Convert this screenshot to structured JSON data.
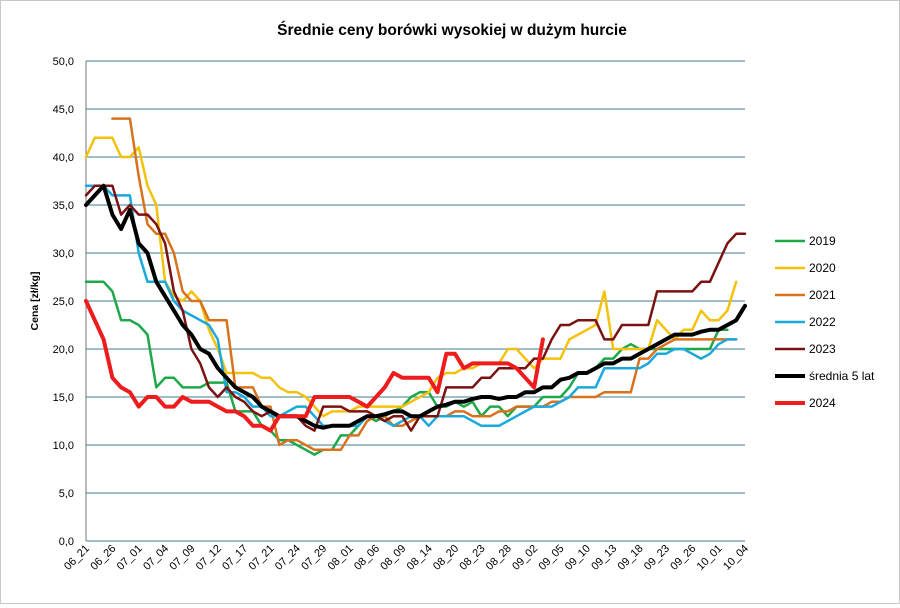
{
  "chart_data": {
    "type": "line",
    "title": "Średnie ceny borówki wysokiej w dużym hurcie",
    "ylabel": "Cena  [zł/kg]",
    "xlabel": "",
    "ylim": [
      0,
      50
    ],
    "grid": true,
    "legend_position": "right",
    "x_tick_labels": [
      "06_21",
      "06_26",
      "07_01",
      "07_04",
      "07_09",
      "07_12",
      "07_17",
      "07_21",
      "07_24",
      "07_29",
      "08_01",
      "08_06",
      "08_09",
      "08_14",
      "08_20",
      "08_23",
      "08_28",
      "09_02",
      "09_05",
      "09_10",
      "09_13",
      "09_18",
      "09_23",
      "09_26",
      "10_01",
      "10_04"
    ],
    "y_tick_labels": [
      "0,0",
      "5,0",
      "10,0",
      "15,0",
      "20,0",
      "25,0",
      "30,0",
      "35,0",
      "40,0",
      "45,0",
      "50,0"
    ],
    "series": [
      {
        "name": "2019",
        "color": "#1ea84a",
        "width": 2.5,
        "values": [
          27,
          27,
          27,
          26,
          23,
          23,
          22.5,
          21.5,
          16,
          17,
          17,
          16,
          16,
          16,
          16.5,
          16.5,
          16.5,
          13.5,
          13.5,
          13.5,
          12,
          11.5,
          10.5,
          10.5,
          10,
          9.5,
          9,
          9.5,
          9.5,
          11,
          11,
          12,
          13,
          12.5,
          13,
          13.5,
          14,
          15,
          15.5,
          15.5,
          14,
          14,
          14.5,
          14,
          14.5,
          13,
          14,
          14,
          13,
          14,
          14,
          14,
          15,
          15,
          15,
          16,
          17.5,
          17.5,
          18,
          19,
          19,
          20,
          20.5,
          20,
          20,
          20,
          20,
          20,
          20,
          20,
          20,
          20,
          22,
          22
        ]
      },
      {
        "name": "2020",
        "color": "#f4c20d",
        "width": 2.5,
        "values": [
          40,
          42,
          42,
          42,
          40,
          40,
          41,
          37,
          35,
          27,
          25.5,
          25,
          26,
          25,
          22,
          20,
          17.5,
          17.5,
          17.5,
          17.5,
          17,
          17,
          16,
          15.5,
          15.5,
          15,
          14,
          13,
          13.5,
          13.5,
          13.5,
          14,
          14,
          14,
          14,
          14,
          14,
          14.5,
          15,
          15.5,
          17,
          17.5,
          17.5,
          18,
          18,
          18.5,
          18.5,
          18.5,
          20,
          20,
          19,
          18,
          19,
          19,
          19,
          21,
          21.5,
          22,
          22.5,
          26,
          20,
          20,
          20,
          20,
          20,
          23,
          22,
          21,
          22,
          22,
          24,
          23,
          23,
          24,
          27
        ]
      },
      {
        "name": "2021",
        "color": "#d9721c",
        "width": 2.5,
        "values": [
          null,
          null,
          null,
          44,
          44,
          44,
          38,
          33,
          32,
          32,
          30,
          26,
          25,
          25,
          23,
          23,
          23,
          16,
          16,
          16,
          14,
          14,
          10,
          10.5,
          10.5,
          10,
          9.5,
          9.5,
          9.5,
          9.5,
          11,
          11,
          12.5,
          13,
          13,
          12,
          12,
          12.5,
          13,
          13,
          13,
          13,
          13.5,
          13.5,
          13,
          13,
          13,
          13.5,
          13.5,
          14,
          14,
          14,
          14,
          14.5,
          14.5,
          15,
          15,
          15,
          15,
          15.5,
          15.5,
          15.5,
          15.5,
          19,
          19,
          20,
          20.5,
          21,
          21,
          21,
          21,
          21,
          21,
          21,
          21
        ]
      },
      {
        "name": "2022",
        "color": "#19a9dc",
        "width": 2.5,
        "values": [
          37,
          37,
          37,
          36,
          36,
          36,
          30,
          27,
          27,
          27,
          25,
          24,
          23.5,
          23,
          22.5,
          21,
          15.5,
          15.5,
          15,
          14,
          14,
          13,
          13,
          13.5,
          14,
          14,
          13,
          12,
          12,
          12,
          12,
          12,
          13,
          13,
          12.5,
          12,
          12.5,
          13,
          13,
          12,
          13,
          13,
          13,
          13,
          12.5,
          12,
          12,
          12,
          12.5,
          13,
          13.5,
          14,
          14,
          14,
          14.5,
          15,
          16,
          16,
          16,
          18,
          18,
          18,
          18,
          18,
          18.5,
          19.5,
          19.5,
          20,
          20,
          19.5,
          19,
          19.5,
          20.5,
          21,
          21
        ]
      },
      {
        "name": "2023",
        "color": "#7a1212",
        "width": 2.5,
        "values": [
          36,
          37,
          37,
          37,
          34,
          35,
          34,
          34,
          33,
          31,
          26,
          24,
          20,
          18.5,
          16,
          15,
          16,
          15,
          14.5,
          13.5,
          13,
          13.5,
          13,
          13,
          13,
          12,
          11.5,
          14,
          14,
          14,
          13.5,
          13.5,
          13.5,
          13,
          12.5,
          13,
          13,
          11.5,
          13,
          13,
          13,
          16,
          16,
          16,
          16,
          17,
          17,
          18,
          18,
          18,
          18,
          19,
          19,
          21,
          22.5,
          22.5,
          23,
          23,
          23,
          21,
          21,
          22.5,
          22.5,
          22.5,
          22.5,
          26,
          26,
          26,
          26,
          26,
          27,
          27,
          29,
          31,
          32,
          32
        ]
      },
      {
        "name": "średnia 5 lat",
        "color": "#000000",
        "width": 4,
        "values": [
          35,
          36,
          37,
          34,
          32.5,
          34.5,
          31,
          30,
          27,
          25.5,
          24,
          22.5,
          21.5,
          20,
          19.5,
          18,
          17,
          16,
          15.5,
          15,
          14,
          13.5,
          13,
          13,
          13,
          12.5,
          12,
          11.8,
          12,
          12,
          12,
          12.5,
          13,
          13,
          13.2,
          13.5,
          13.5,
          13,
          13,
          13.5,
          14,
          14.2,
          14.5,
          14.5,
          14.8,
          15,
          15,
          14.8,
          15,
          15,
          15.5,
          15.5,
          16,
          16,
          16.8,
          17,
          17.5,
          17.5,
          18,
          18.5,
          18.5,
          19,
          19,
          19.5,
          20,
          20.5,
          21,
          21.5,
          21.5,
          21.5,
          21.8,
          22,
          22,
          22.5,
          23,
          24.5
        ]
      },
      {
        "name": "2024",
        "color": "#ee1c1c",
        "width": 4,
        "values": [
          25,
          23,
          21,
          17,
          16,
          15.5,
          14,
          15,
          15,
          14,
          14,
          15,
          14.5,
          14.5,
          14.5,
          14,
          13.5,
          13.5,
          13,
          12,
          12,
          11.5,
          13,
          13,
          13,
          13,
          15,
          15,
          15,
          15,
          15,
          14.5,
          14,
          15,
          16,
          17.5,
          17,
          17,
          17,
          17,
          15.5,
          19.5,
          19.5,
          18,
          18.5,
          18.5,
          18.5,
          18.5,
          18.5,
          18,
          17,
          16,
          21
        ]
      }
    ]
  }
}
